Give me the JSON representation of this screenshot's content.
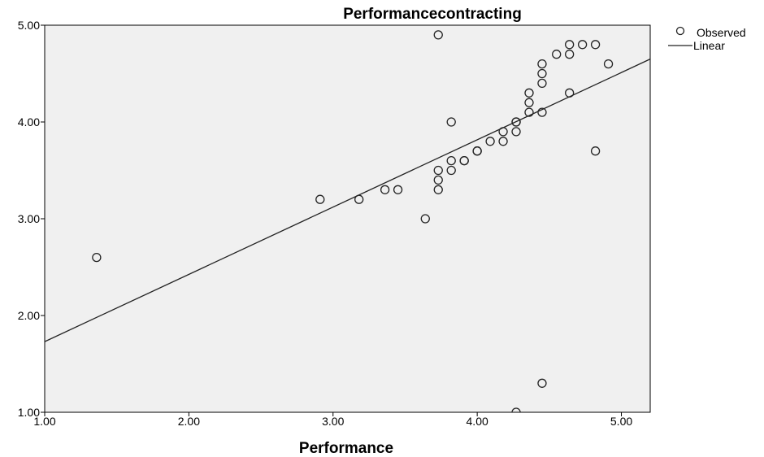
{
  "chart_data": {
    "type": "scatter",
    "title": "Performancecontracting",
    "xlabel": "Performance",
    "ylabel": "",
    "xlim": [
      1.0,
      5.2
    ],
    "ylim": [
      1.0,
      5.0
    ],
    "x_ticks": [
      "1.00",
      "2.00",
      "3.00",
      "4.00",
      "5.00"
    ],
    "y_ticks": [
      "1.00",
      "2.00",
      "3.00",
      "4.00",
      "5.00"
    ],
    "grid": false,
    "legend_position": "top-right, outside plot",
    "colors": {
      "plot_background": "#f0f0f0",
      "marker_edge": "#222222",
      "fit_line": "#222222"
    },
    "series": [
      {
        "name": "Observed",
        "kind": "points",
        "x": [
          1.36,
          2.91,
          3.18,
          3.36,
          3.45,
          3.64,
          3.73,
          3.73,
          3.73,
          3.73,
          3.82,
          3.82,
          3.82,
          3.91,
          3.91,
          4.0,
          4.0,
          4.09,
          4.18,
          4.18,
          4.27,
          4.27,
          4.27,
          4.36,
          4.36,
          4.36,
          4.45,
          4.45,
          4.45,
          4.45,
          4.55,
          4.64,
          4.64,
          4.64,
          4.73,
          4.82,
          4.82,
          4.91,
          4.45,
          4.27
        ],
        "y": [
          2.6,
          3.2,
          3.2,
          3.3,
          3.3,
          3.0,
          4.9,
          3.5,
          3.4,
          3.3,
          4.0,
          3.6,
          3.5,
          3.6,
          3.6,
          3.7,
          3.7,
          3.8,
          3.9,
          3.8,
          4.0,
          3.9,
          1.0,
          4.3,
          4.2,
          4.1,
          4.6,
          4.5,
          4.4,
          4.1,
          4.7,
          4.8,
          4.7,
          4.3,
          4.8,
          4.8,
          3.7,
          4.6,
          1.3,
          4.0
        ]
      },
      {
        "name": "Linear",
        "kind": "line",
        "x": [
          1.0,
          5.2
        ],
        "y": [
          1.73,
          4.65
        ]
      }
    ]
  }
}
